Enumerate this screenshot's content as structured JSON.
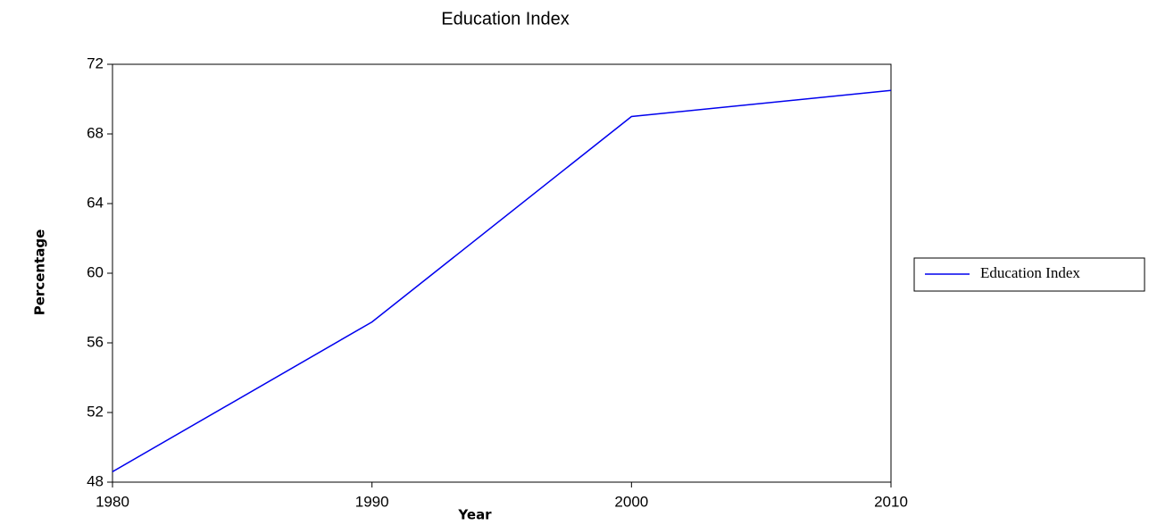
{
  "chart_data": {
    "type": "line",
    "title": "Education Index",
    "x_label": "Year",
    "y_label": "Percentage",
    "x": [
      1980,
      1990,
      2000,
      2010
    ],
    "series": [
      {
        "name": "Education Index",
        "color": "#0000ee",
        "values": [
          48.6,
          57.2,
          69.0,
          70.5
        ]
      }
    ],
    "xlim": [
      1980,
      2010
    ],
    "xticks": [
      1980,
      1990,
      2000,
      2010
    ],
    "ylim": [
      48,
      72
    ],
    "yticks": [
      48,
      52,
      56,
      60,
      64,
      68,
      72
    ],
    "grid": false,
    "legend": "right"
  }
}
